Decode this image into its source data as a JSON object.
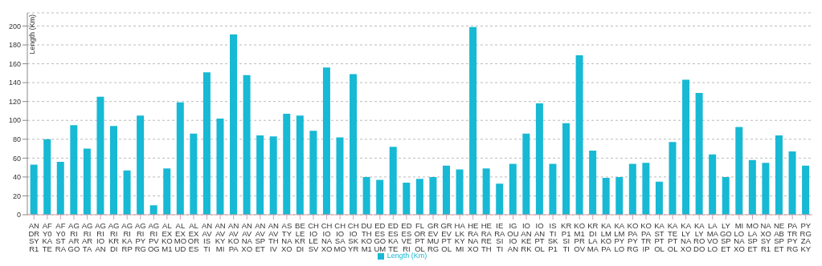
{
  "chart_data": {
    "type": "bar",
    "ylabel": "Length (Km)",
    "categories": [
      "ANDRSYR1",
      "AFY0KATE",
      "AFY0STRA",
      "AGRIARGO",
      "AGRIARTA",
      "AGRIIOAN",
      "AGRIKRDI",
      "AGRIKARP",
      "AGRIPYRG",
      "AGRIPVOG",
      "ALEXKOM1",
      "ALEXMOUD",
      "ALEXORES",
      "ANAVISTI",
      "ANAVKYMI",
      "ANAVKOPA",
      "ANAVNAXO",
      "ANAVSPET",
      "ANAVTHIV",
      "ASTYNAXO",
      "BELEKRDI",
      "CHIOLESV",
      "CHIONAXO",
      "CHIOSAMO",
      "CHIOSKYR",
      "DUTHKOM1",
      "EDESGOUM",
      "EDESKATE",
      "EDESVERI",
      "FLORPTOL",
      "GREVMURG",
      "GREVPTOL",
      "HALKKYMI",
      "HERANAXO",
      "HERARETH",
      "IERASITI",
      "IGOUIOAN",
      "IOANKERK",
      "IOANPTOL",
      "ISTISKP1",
      "KRP1SITI",
      "KOM1PROV",
      "KRDILAMA",
      "KALMKOPA",
      "KALMPYLO",
      "KOPAPYRG",
      "KOPATRIP",
      "KASTPTOL",
      "KATEPTOL",
      "KALYNAXO",
      "KALYRODO",
      "LAMAVOLO",
      "LYGOSPET",
      "MILONAXO",
      "MOLASPET",
      "NAXOSYR1",
      "NEABSPET",
      "PATRPYRG",
      "PYRGZAKY"
    ],
    "series": [
      {
        "name": "Length (Km)",
        "color": "#17b9d4",
        "values": [
          53,
          80,
          56,
          95,
          70,
          125,
          94,
          47,
          105,
          10,
          49,
          119,
          86,
          151,
          102,
          191,
          148,
          84,
          83,
          107,
          105,
          89,
          156,
          82,
          149,
          40,
          37,
          72,
          34,
          38,
          40,
          52,
          48,
          199,
          49,
          33,
          54,
          86,
          118,
          54,
          97,
          169,
          68,
          39,
          40,
          54,
          55,
          35,
          77,
          143,
          129,
          64,
          40,
          93,
          58,
          55,
          84,
          67,
          52
        ]
      }
    ],
    "ylim": [
      0,
      214
    ],
    "yticks": [
      0,
      20,
      40,
      60,
      80,
      100,
      120,
      140,
      160,
      180,
      200
    ],
    "grid": "y",
    "legend": "bottom"
  }
}
